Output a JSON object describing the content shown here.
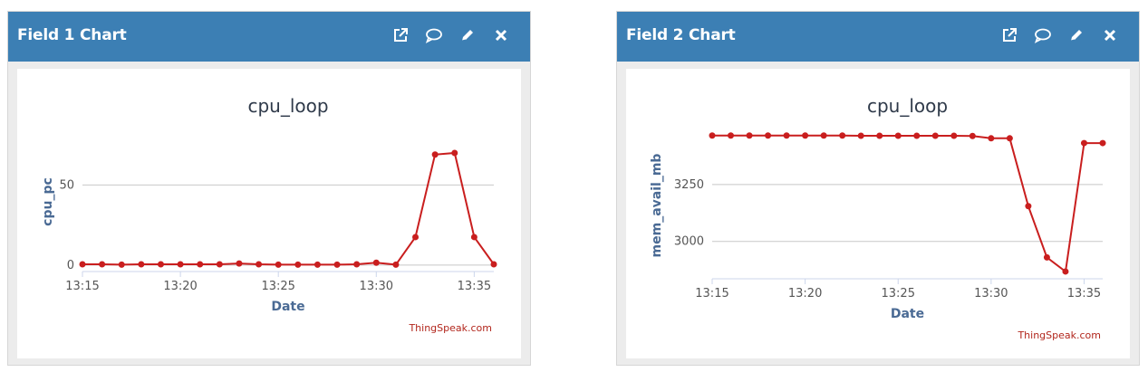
{
  "panels": [
    {
      "title": "Field 1 Chart",
      "actions": [
        "external-link-icon",
        "comment-icon",
        "pencil-icon",
        "close-icon"
      ]
    },
    {
      "title": "Field 2 Chart",
      "actions": [
        "external-link-icon",
        "comment-icon",
        "pencil-icon",
        "close-icon"
      ]
    }
  ],
  "colors": {
    "header": "#3c7fb4",
    "series": "#c91e1e",
    "grid": "#c8c8c8"
  },
  "chart_data": [
    {
      "type": "line",
      "title": "cpu_loop",
      "xlabel": "Date",
      "ylabel": "cpu_pc",
      "credit": "ThingSpeak.com",
      "x_ticks": [
        "13:15",
        "13:20",
        "13:25",
        "13:30",
        "13:35"
      ],
      "x_tick_minutes": [
        15,
        20,
        25,
        30,
        35
      ],
      "y_ticks": [
        0,
        50
      ],
      "xlim": [
        15,
        36
      ],
      "ylim": [
        -4,
        83
      ],
      "grid": true,
      "series": [
        {
          "x": [
            15,
            16,
            17,
            18,
            19,
            20,
            21,
            22,
            23,
            24,
            25,
            26,
            27,
            28,
            29,
            30,
            31,
            32,
            33,
            34,
            35,
            36
          ],
          "values": [
            0.5,
            0.5,
            0.3,
            0.5,
            0.5,
            0.5,
            0.5,
            0.5,
            1,
            0.5,
            0.3,
            0.3,
            0.3,
            0.3,
            0.5,
            1.5,
            0.3,
            17.5,
            69,
            70,
            17.5,
            0.5
          ]
        }
      ]
    },
    {
      "type": "line",
      "title": "cpu_loop",
      "xlabel": "Date",
      "ylabel": "mem_avail_mb",
      "credit": "ThingSpeak.com",
      "x_ticks": [
        "13:15",
        "13:20",
        "13:25",
        "13:30",
        "13:35"
      ],
      "x_tick_minutes": [
        15,
        20,
        25,
        30,
        35
      ],
      "y_ticks": [
        3000,
        3250
      ],
      "xlim": [
        15,
        36
      ],
      "ylim": [
        2836,
        3480
      ],
      "grid": true,
      "series": [
        {
          "x": [
            15,
            16,
            17,
            18,
            19,
            20,
            21,
            22,
            23,
            24,
            25,
            26,
            27,
            28,
            29,
            30,
            31,
            32,
            33,
            34,
            35,
            36
          ],
          "values": [
            3465,
            3465,
            3465,
            3465,
            3465,
            3465,
            3465,
            3465,
            3464,
            3464,
            3464,
            3464,
            3464,
            3464,
            3463,
            3453,
            3453,
            3155,
            2930,
            2868,
            3432,
            3432
          ]
        }
      ]
    }
  ]
}
